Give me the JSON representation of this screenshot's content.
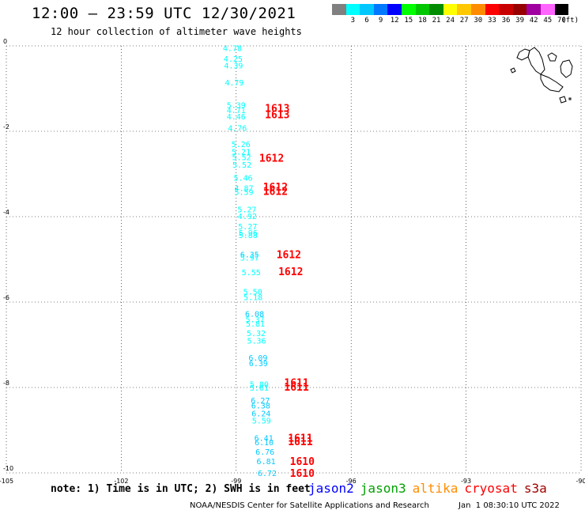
{
  "header": {
    "title": "12:00 – 23:59 UTC 12/30/2021",
    "subtitle": "12 hour collection of altimeter wave heights"
  },
  "legend": {
    "unit": "(ft)",
    "bins": [
      {
        "label": "",
        "color": "#808080"
      },
      {
        "label": "3",
        "color": "#00ffff"
      },
      {
        "label": "6",
        "color": "#00c8ff"
      },
      {
        "label": "9",
        "color": "#0078ff"
      },
      {
        "label": "12",
        "color": "#0000ff"
      },
      {
        "label": "15",
        "color": "#00ff00"
      },
      {
        "label": "18",
        "color": "#00c800"
      },
      {
        "label": "21",
        "color": "#008c00"
      },
      {
        "label": "24",
        "color": "#ffff00"
      },
      {
        "label": "27",
        "color": "#ffc800"
      },
      {
        "label": "30",
        "color": "#ff8c00"
      },
      {
        "label": "33",
        "color": "#ff0000"
      },
      {
        "label": "36",
        "color": "#c80000"
      },
      {
        "label": "39",
        "color": "#960000"
      },
      {
        "label": "42",
        "color": "#a000a0"
      },
      {
        "label": "45",
        "color": "#ff64ff"
      },
      {
        "label": "70",
        "color": "#000000"
      }
    ]
  },
  "map": {
    "lon_range": [
      -105,
      -90
    ],
    "lat_range": [
      -10,
      0
    ],
    "x_ticks": [
      {
        "value": -105,
        "label": "-105"
      },
      {
        "value": -102,
        "label": "-102"
      },
      {
        "value": -99,
        "label": "-99"
      },
      {
        "value": -96,
        "label": "-96"
      },
      {
        "value": -93,
        "label": "-93"
      },
      {
        "value": -90,
        "label": "-90"
      }
    ],
    "y_ticks": [
      {
        "value": 0,
        "label": "0"
      },
      {
        "value": -2,
        "label": "-2"
      },
      {
        "value": -4,
        "label": "-4"
      },
      {
        "value": -6,
        "label": "-6"
      },
      {
        "value": -8,
        "label": "-8"
      },
      {
        "value": -10,
        "label": "-10"
      }
    ],
    "grid": true,
    "land_color": "#000000"
  },
  "observations": [
    {
      "lon": -99.1,
      "lat": -0.05,
      "swh": "4.78",
      "color": "#00ffff"
    },
    {
      "lon": -99.08,
      "lat": -0.3,
      "swh": "4.25",
      "color": "#00ffff"
    },
    {
      "lon": -99.07,
      "lat": -0.45,
      "swh": "4.39",
      "color": "#00ffff"
    },
    {
      "lon": -99.05,
      "lat": -0.85,
      "swh": "4.79",
      "color": "#00ffff"
    },
    {
      "lon": -99.0,
      "lat": -1.38,
      "swh": "5.39",
      "color": "#00ffff"
    },
    {
      "lon": -99.0,
      "lat": -1.5,
      "swh": "4.71",
      "color": "#00ffff"
    },
    {
      "lon": -99.0,
      "lat": -1.65,
      "swh": "4.46",
      "color": "#00ffff"
    },
    {
      "lon": -98.97,
      "lat": -1.92,
      "swh": "4.76",
      "color": "#00ffff"
    },
    {
      "lon": -98.88,
      "lat": -2.3,
      "swh": "5.26",
      "color": "#00ffff"
    },
    {
      "lon": -98.87,
      "lat": -2.47,
      "swh": "5.21",
      "color": "#00ffff"
    },
    {
      "lon": -98.86,
      "lat": -2.6,
      "swh": "5.52",
      "color": "#00ffff"
    },
    {
      "lon": -98.85,
      "lat": -2.78,
      "swh": "5.52",
      "color": "#00ffff"
    },
    {
      "lon": -98.82,
      "lat": -3.08,
      "swh": "5.46",
      "color": "#00ffff"
    },
    {
      "lon": -98.8,
      "lat": -3.32,
      "swh": "4.87",
      "color": "#00ffff"
    },
    {
      "lon": -98.8,
      "lat": -3.42,
      "swh": "5.59",
      "color": "#00ffff"
    },
    {
      "lon": -98.72,
      "lat": -3.82,
      "swh": "5.27",
      "color": "#00ffff"
    },
    {
      "lon": -98.71,
      "lat": -3.98,
      "swh": "4.92",
      "color": "#00ffff"
    },
    {
      "lon": -98.7,
      "lat": -4.22,
      "swh": "5.27",
      "color": "#00ffff"
    },
    {
      "lon": -98.69,
      "lat": -4.37,
      "swh": "5.96",
      "color": "#00ffff"
    },
    {
      "lon": -98.69,
      "lat": -4.43,
      "swh": "5.88",
      "color": "#00ffff"
    },
    {
      "lon": -98.65,
      "lat": -4.88,
      "swh": "6.35",
      "color": "#00c8ff"
    },
    {
      "lon": -98.65,
      "lat": -4.95,
      "swh": "5.97",
      "color": "#00ffff"
    },
    {
      "lon": -98.61,
      "lat": -5.3,
      "swh": "5.55",
      "color": "#00ffff"
    },
    {
      "lon": -98.57,
      "lat": -5.75,
      "swh": "5.50",
      "color": "#00ffff"
    },
    {
      "lon": -98.56,
      "lat": -5.88,
      "swh": "5.18",
      "color": "#00ffff"
    },
    {
      "lon": -98.52,
      "lat": -6.27,
      "swh": "6.08",
      "color": "#00c8ff"
    },
    {
      "lon": -98.51,
      "lat": -6.4,
      "swh": "5.37",
      "color": "#00ffff"
    },
    {
      "lon": -98.5,
      "lat": -6.5,
      "swh": "5.81",
      "color": "#00ffff"
    },
    {
      "lon": -98.48,
      "lat": -6.72,
      "swh": "5.32",
      "color": "#00ffff"
    },
    {
      "lon": -98.47,
      "lat": -6.9,
      "swh": "5.36",
      "color": "#00ffff"
    },
    {
      "lon": -98.43,
      "lat": -7.3,
      "swh": "6.09",
      "color": "#00c8ff"
    },
    {
      "lon": -98.42,
      "lat": -7.43,
      "swh": "6.39",
      "color": "#00c8ff"
    },
    {
      "lon": -98.4,
      "lat": -7.92,
      "swh": "5.80",
      "color": "#00ffff"
    },
    {
      "lon": -98.4,
      "lat": -8.0,
      "swh": "5.61",
      "color": "#00ffff"
    },
    {
      "lon": -98.37,
      "lat": -8.3,
      "swh": "6.27",
      "color": "#00c8ff"
    },
    {
      "lon": -98.36,
      "lat": -8.42,
      "swh": "6.38",
      "color": "#00c8ff"
    },
    {
      "lon": -98.35,
      "lat": -8.6,
      "swh": "6.24",
      "color": "#00c8ff"
    },
    {
      "lon": -98.34,
      "lat": -8.77,
      "swh": "5.59",
      "color": "#00ffff"
    },
    {
      "lon": -98.28,
      "lat": -9.18,
      "swh": "6.41",
      "color": "#00c8ff"
    },
    {
      "lon": -98.27,
      "lat": -9.28,
      "swh": "6.10",
      "color": "#00c8ff"
    },
    {
      "lon": -98.25,
      "lat": -9.5,
      "swh": "6.76",
      "color": "#00c8ff"
    },
    {
      "lon": -98.22,
      "lat": -9.72,
      "swh": "6.81",
      "color": "#00c8ff"
    },
    {
      "lon": -98.19,
      "lat": -10.0,
      "swh": "6.72",
      "color": "#00c8ff"
    }
  ],
  "pass_labels": [
    {
      "lon": -98.25,
      "lat": -1.45,
      "text": "1613"
    },
    {
      "lon": -98.25,
      "lat": -1.6,
      "text": "1613"
    },
    {
      "lon": -98.4,
      "lat": -2.62,
      "text": "1612"
    },
    {
      "lon": -98.3,
      "lat": -3.3,
      "text": "1612"
    },
    {
      "lon": -98.3,
      "lat": -3.4,
      "text": "1612"
    },
    {
      "lon": -97.95,
      "lat": -4.88,
      "text": "1612"
    },
    {
      "lon": -97.9,
      "lat": -5.28,
      "text": "1612"
    },
    {
      "lon": -97.75,
      "lat": -7.88,
      "text": "1611"
    },
    {
      "lon": -97.75,
      "lat": -7.98,
      "text": "1611"
    },
    {
      "lon": -97.65,
      "lat": -9.18,
      "text": "1611"
    },
    {
      "lon": -97.65,
      "lat": -9.26,
      "text": "1611"
    },
    {
      "lon": -97.6,
      "lat": -9.72,
      "text": "1610"
    },
    {
      "lon": -97.6,
      "lat": -10.0,
      "text": "1610"
    }
  ],
  "pass_color": "#ff0000",
  "note": "note: 1) Time is in UTC; 2) SWH is in feet",
  "missions": [
    {
      "name": "jason2",
      "color": "#0000ff"
    },
    {
      "name": "jason3",
      "color": "#00a000"
    },
    {
      "name": "altika",
      "color": "#ff8c00"
    },
    {
      "name": "cryosat",
      "color": "#ff0000"
    },
    {
      "name": "s3a",
      "color": "#a00000"
    }
  ],
  "footer": {
    "credit": "NOAA/NESDIS Center for Satellite Applications and Research",
    "timestamp": "Jan  1 08:30:10 UTC 2022"
  }
}
